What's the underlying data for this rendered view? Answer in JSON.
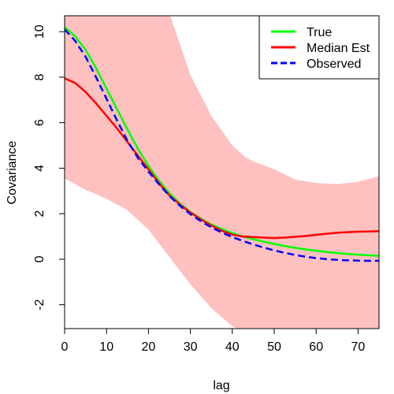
{
  "chart_data": {
    "type": "line",
    "title": "",
    "xlabel": "lag",
    "ylabel": "Covariance",
    "xlim": [
      0,
      75
    ],
    "ylim": [
      -3.05,
      10.7
    ],
    "x_ticks": [
      0,
      10,
      20,
      30,
      40,
      50,
      60,
      70
    ],
    "y_ticks": [
      -2,
      0,
      2,
      4,
      6,
      8,
      10
    ],
    "legend_position": "top-right",
    "band": {
      "color": "#ffc0c0",
      "x": [
        0,
        5,
        10,
        15,
        20,
        25,
        30,
        35,
        40,
        43,
        45,
        50,
        55,
        60,
        65,
        70,
        75
      ],
      "upper": [
        13.8,
        13.8,
        13.8,
        13.8,
        13.8,
        10.8,
        8.1,
        6.3,
        5.0,
        4.5,
        4.3,
        3.95,
        3.5,
        3.35,
        3.3,
        3.4,
        3.65
      ],
      "lower": [
        3.55,
        3.05,
        2.65,
        2.15,
        1.3,
        0.1,
        -1.1,
        -2.15,
        -2.95,
        -3.2,
        -3.2,
        -3.2,
        -3.2,
        -3.2,
        -3.2,
        -3.2,
        -3.2
      ]
    },
    "series": [
      {
        "name": "True",
        "color": "#00ff00",
        "dash": "solid",
        "x": [
          0,
          2.5,
          5,
          7.5,
          10,
          12.5,
          15,
          17.5,
          20,
          22.5,
          25,
          27.5,
          30,
          32.5,
          35,
          37.5,
          40,
          42.5,
          45,
          47.5,
          50,
          52.5,
          55,
          57.5,
          60,
          62.5,
          65,
          67.5,
          70,
          72.5,
          75
        ],
        "values": [
          10.2,
          9.8,
          9.2,
          8.4,
          7.5,
          6.6,
          5.7,
          4.85,
          4.1,
          3.45,
          2.9,
          2.45,
          2.08,
          1.78,
          1.53,
          1.32,
          1.15,
          1.0,
          0.88,
          0.77,
          0.67,
          0.58,
          0.5,
          0.43,
          0.37,
          0.32,
          0.27,
          0.23,
          0.2,
          0.17,
          0.15
        ]
      },
      {
        "name": "Median Est",
        "color": "#ff0000",
        "dash": "solid",
        "x": [
          0,
          2.5,
          5,
          7.5,
          10,
          12.5,
          15,
          17.5,
          20,
          22.5,
          25,
          27.5,
          30,
          32.5,
          35,
          37.5,
          40,
          42.5,
          45,
          47.5,
          50,
          52.5,
          55,
          57.5,
          60,
          62.5,
          65,
          67.5,
          70,
          72.5,
          75
        ],
        "values": [
          7.95,
          7.75,
          7.35,
          6.85,
          6.3,
          5.75,
          5.15,
          4.55,
          3.95,
          3.35,
          2.8,
          2.4,
          2.05,
          1.75,
          1.48,
          1.25,
          1.08,
          1.0,
          0.97,
          0.95,
          0.93,
          0.95,
          0.99,
          1.02,
          1.07,
          1.12,
          1.16,
          1.19,
          1.21,
          1.22,
          1.23
        ]
      },
      {
        "name": "Observed",
        "color": "#0000ff",
        "dash": "dashed",
        "x": [
          0,
          2.5,
          5,
          7.5,
          10,
          12.5,
          15,
          17.5,
          20,
          22.5,
          25,
          27.5,
          30,
          32.5,
          35,
          37.5,
          40,
          42.5,
          45,
          47.5,
          50,
          52.5,
          55,
          57.5,
          60,
          62.5,
          65,
          67.5,
          70,
          72.5,
          75
        ],
        "values": [
          10.1,
          9.6,
          8.9,
          8.0,
          7.05,
          6.1,
          5.2,
          4.45,
          3.85,
          3.3,
          2.78,
          2.35,
          1.98,
          1.67,
          1.4,
          1.17,
          0.97,
          0.8,
          0.65,
          0.51,
          0.39,
          0.28,
          0.19,
          0.11,
          0.05,
          0.0,
          -0.03,
          -0.05,
          -0.06,
          -0.07,
          -0.07
        ]
      }
    ]
  }
}
